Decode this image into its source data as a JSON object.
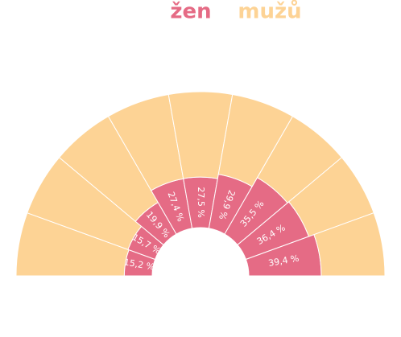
{
  "chart_data": {
    "type": "radial_stacked_bar",
    "series": [
      {
        "name": "žen",
        "color": "#e56b85",
        "values": [
          15.2,
          15.7,
          19.9,
          27.4,
          27.5,
          29.9,
          35.5,
          36.4,
          39.4
        ],
        "value_labels": [
          "15,2 %",
          "15,7 %",
          "19,9 %",
          "27,4 %",
          "27,5 %",
          "29,9 %",
          "35,5 %",
          "36,4 %",
          "39,4 %"
        ]
      },
      {
        "name": "mužů",
        "color": "#fdd395",
        "values": [
          58.8,
          58.3,
          54.1,
          46.6,
          46.5,
          44.1,
          38.5,
          37.6,
          34.6
        ]
      }
    ],
    "rlim": [
      0,
      74
    ]
  }
}
